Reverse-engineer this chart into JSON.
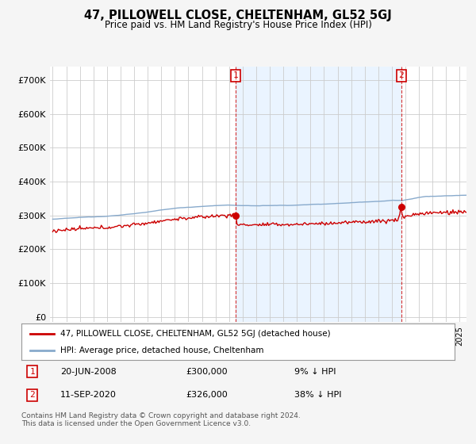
{
  "title": "47, PILLOWELL CLOSE, CHELTENHAM, GL52 5GJ",
  "subtitle": "Price paid vs. HM Land Registry's House Price Index (HPI)",
  "legend_label_red": "47, PILLOWELL CLOSE, CHELTENHAM, GL52 5GJ (detached house)",
  "legend_label_blue": "HPI: Average price, detached house, Cheltenham",
  "annotation1_date": "20-JUN-2008",
  "annotation1_price": "£300,000",
  "annotation1_hpi": "9% ↓ HPI",
  "annotation1_year": 2008.47,
  "annotation1_value": 300000,
  "annotation2_date": "11-SEP-2020",
  "annotation2_price": "£326,000",
  "annotation2_hpi": "38% ↓ HPI",
  "annotation2_year": 2020.7,
  "annotation2_value": 326000,
  "yticks": [
    0,
    100000,
    200000,
    300000,
    400000,
    500000,
    600000,
    700000
  ],
  "ylim": [
    -15000,
    740000
  ],
  "xlim_start": 1994.8,
  "xlim_end": 2025.5,
  "background_color": "#f5f5f5",
  "plot_bg_color": "#ffffff",
  "shade_color": "#ddeeff",
  "red_color": "#cc0000",
  "blue_color": "#88aacc",
  "grid_color": "#cccccc",
  "footnote": "Contains HM Land Registry data © Crown copyright and database right 2024.\nThis data is licensed under the Open Government Licence v3.0."
}
